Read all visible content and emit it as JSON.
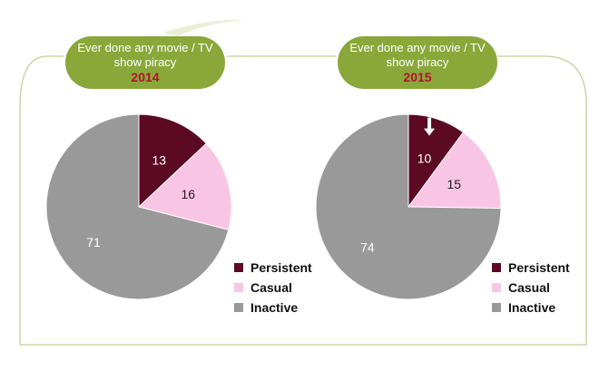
{
  "panels": [
    {
      "title": "Ever done any movie / TV show piracy",
      "year": "2014"
    },
    {
      "title": "Ever done any movie / TV show piracy",
      "year": "2015"
    }
  ],
  "colors": {
    "persistent": "#5c0a23",
    "casual": "#f8c6e4",
    "inactive": "#999999",
    "header_bg": "#8aa83a",
    "year_text": "#b3122e",
    "frame": "#c9d7a4"
  },
  "chart_data": [
    {
      "type": "pie",
      "title": "",
      "categories": [
        "Persistent",
        "Casual",
        "Inactive"
      ],
      "values": [
        13,
        16,
        71
      ]
    },
    {
      "type": "pie",
      "title": "",
      "categories": [
        "Persistent",
        "Casual",
        "Inactive"
      ],
      "values": [
        10,
        15,
        74
      ],
      "annotations": [
        "down-arrow on Persistent slice"
      ]
    }
  ],
  "legend": [
    "Persistent",
    "Casual",
    "Inactive"
  ]
}
